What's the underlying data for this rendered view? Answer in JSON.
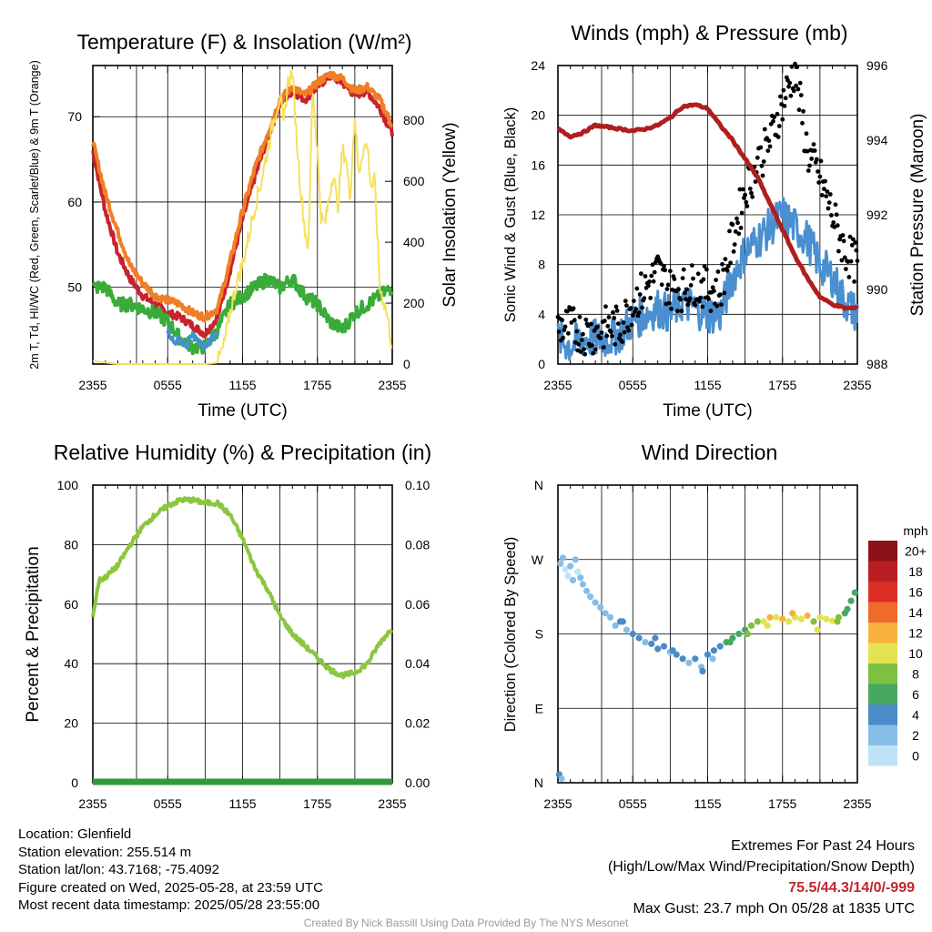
{
  "chart_data": [
    {
      "type": "line",
      "title": "Temperature (F) & Insolation (W/m²)",
      "xlabel": "Time (UTC)",
      "ylabel": "2m T, Td, HI/WC (Red, Green, Scarlet/Blue) & 9m T (Orange)",
      "ylabel_right": "Solar Insolation (Yellow)",
      "x_ticks": [
        "2355",
        "0555",
        "1155",
        "1755",
        "2355"
      ],
      "ylim": [
        41,
        76
      ],
      "y_ticks": [
        50,
        60,
        70
      ],
      "ylim_right": [
        0,
        980
      ],
      "y_ticks_right": [
        0,
        200,
        400,
        600,
        800
      ],
      "grid": true,
      "series": [
        {
          "name": "2m T",
          "color": "#c8232c",
          "axis": "left",
          "x": [
            0,
            1,
            2,
            3,
            4,
            5,
            6,
            7,
            8,
            9,
            10,
            11,
            12,
            13,
            14,
            15,
            16,
            17,
            18,
            19,
            20,
            21,
            22,
            23,
            24
          ],
          "y": [
            66,
            59,
            54,
            51,
            49,
            48,
            47,
            46.5,
            45.5,
            44.5,
            46.5,
            52,
            58,
            63,
            67.5,
            71.5,
            73,
            72,
            73.5,
            74.8,
            74,
            72.5,
            73,
            71,
            68
          ]
        },
        {
          "name": "9m T",
          "color": "#f07e26",
          "axis": "left",
          "x": [
            0,
            1,
            2,
            3,
            4,
            5,
            6,
            7,
            8,
            9,
            10,
            11,
            12,
            13,
            14,
            15,
            16,
            17,
            18,
            19,
            20,
            21,
            22,
            23,
            24
          ],
          "y": [
            67,
            61,
            56.5,
            52.5,
            50.5,
            49,
            48.5,
            48,
            47,
            46.5,
            47.5,
            53,
            59,
            64,
            68,
            72,
            73.5,
            72.5,
            74,
            75,
            74.5,
            73,
            73.5,
            72,
            69
          ]
        },
        {
          "name": "Td",
          "color": "#3aab3a",
          "axis": "left",
          "x": [
            0,
            1,
            2,
            3,
            4,
            5,
            6,
            7,
            8,
            9,
            10,
            11,
            12,
            13,
            14,
            15,
            16,
            17,
            18,
            19,
            20,
            21,
            22,
            23,
            24
          ],
          "y": [
            50,
            50,
            48,
            48,
            47.5,
            47,
            46,
            44,
            43,
            43,
            45,
            48,
            49,
            50,
            51,
            50,
            51,
            49,
            48,
            46,
            45,
            47,
            48,
            49,
            50
          ]
        },
        {
          "name": "HI/WC",
          "color": "#4591ce",
          "axis": "left",
          "x": [
            6,
            6.5,
            7,
            7.5,
            8,
            8.5,
            9,
            9.5,
            10
          ],
          "y": [
            45,
            43.5,
            44,
            43,
            44.5,
            43.5,
            43,
            44,
            45
          ]
        },
        {
          "name": "Solar Insolation",
          "color": "#f6e05e",
          "axis": "right",
          "x": [
            0,
            2,
            4,
            6,
            8,
            9,
            10,
            10.5,
            11,
            11.5,
            12,
            12.5,
            13,
            13.5,
            14,
            14.5,
            15,
            15.3,
            15.6,
            16,
            16.3,
            16.6,
            17,
            17.3,
            17.6,
            18,
            18.3,
            18.6,
            19,
            19.3,
            19.6,
            20,
            20.3,
            20.6,
            21,
            21.3,
            21.6,
            22,
            22.3,
            22.6,
            23,
            23.5,
            24
          ],
          "y": [
            10,
            0,
            0,
            0,
            0,
            0,
            5,
            60,
            170,
            260,
            330,
            420,
            520,
            600,
            700,
            800,
            880,
            780,
            920,
            960,
            760,
            600,
            440,
            380,
            920,
            700,
            480,
            460,
            560,
            640,
            500,
            700,
            680,
            540,
            820,
            620,
            700,
            720,
            580,
            600,
            250,
            180,
            60
          ]
        }
      ]
    },
    {
      "type": "line",
      "title": "Winds (mph) & Pressure (mb)",
      "xlabel": "Time (UTC)",
      "ylabel": "Sonic Wind & Gust (Blue, Black)",
      "ylabel_right": "Station Pressure (Maroon)",
      "x_ticks": [
        "2355",
        "0555",
        "1155",
        "1755",
        "2355"
      ],
      "ylim": [
        0,
        24
      ],
      "y_ticks": [
        0,
        4,
        8,
        12,
        16,
        20,
        24
      ],
      "ylim_right": [
        988,
        996
      ],
      "y_ticks_right": [
        988,
        990,
        992,
        994,
        996
      ],
      "grid": true,
      "series": [
        {
          "name": "Sonic Wind",
          "color": "#4a8fd0",
          "axis": "left",
          "x": [
            0,
            1,
            2,
            3,
            4,
            5,
            6,
            7,
            8,
            9,
            10,
            11,
            12,
            13,
            14,
            15,
            16,
            17,
            18,
            19,
            20,
            21,
            22,
            23,
            24
          ],
          "y": [
            2,
            1.5,
            2,
            2,
            2,
            2.5,
            3.5,
            4,
            4.5,
            4,
            5,
            4.5,
            4,
            4,
            7,
            9,
            10,
            11,
            12,
            11,
            10,
            8,
            7,
            5,
            4
          ]
        },
        {
          "name": "Gust",
          "color": "#000000",
          "axis": "left",
          "x": [
            0,
            1,
            2,
            3,
            4,
            5,
            6,
            7,
            8,
            9,
            10,
            11,
            12,
            13,
            14,
            15,
            16,
            17,
            18,
            19,
            20,
            21,
            22,
            23,
            24
          ],
          "y": [
            3,
            3,
            2.5,
            2.5,
            3,
            3,
            5,
            6,
            7.5,
            6,
            6,
            6.5,
            6,
            6,
            10,
            14,
            16,
            18,
            21,
            23.7,
            17,
            15,
            12,
            9,
            8
          ]
        },
        {
          "name": "Station Pressure",
          "color": "#b01e1e",
          "axis": "right",
          "x": [
            0,
            1,
            2,
            3,
            4,
            5,
            6,
            7,
            8,
            9,
            10,
            11,
            12,
            13,
            14,
            15,
            16,
            17,
            18,
            19,
            20,
            21,
            22,
            23,
            24
          ],
          "y": [
            994.3,
            994.1,
            994.2,
            994.4,
            994.35,
            994.3,
            994.25,
            994.3,
            994.4,
            994.6,
            994.9,
            994.95,
            994.85,
            994.4,
            994,
            993.5,
            993.0,
            992.3,
            991.6,
            990.9,
            990.3,
            989.8,
            989.6,
            989.5,
            989.5
          ]
        }
      ]
    },
    {
      "type": "line",
      "title": "Relative Humidity (%) & Precipitation (in)",
      "xlabel": "",
      "ylabel": "Percent & Precipitation",
      "x_ticks": [
        "2355",
        "0555",
        "1155",
        "1755",
        "2355"
      ],
      "ylim": [
        0,
        100
      ],
      "y_ticks": [
        0,
        20,
        40,
        60,
        80,
        100
      ],
      "ylim_right": [
        0,
        0.1
      ],
      "y_ticks_right": [
        "0.00",
        "0.02",
        "0.04",
        "0.06",
        "0.08",
        "0.10"
      ],
      "grid": true,
      "series": [
        {
          "name": "Relative Humidity",
          "color": "#8cc63f",
          "axis": "left",
          "x": [
            0,
            0.5,
            1,
            2,
            3,
            4,
            5,
            6,
            7,
            8,
            9,
            10,
            11,
            12,
            13,
            14,
            15,
            16,
            17,
            18,
            19,
            20,
            21,
            22,
            23,
            24
          ],
          "y": [
            56,
            68,
            69,
            73,
            80,
            86,
            90,
            93,
            95,
            95,
            94,
            94,
            90,
            82,
            72,
            65,
            56,
            50,
            46,
            42,
            38,
            36,
            37,
            40,
            47,
            52
          ]
        },
        {
          "name": "Precipitation",
          "color": "#2f9a3c",
          "axis": "right",
          "x": [
            0,
            24
          ],
          "y": [
            0,
            0
          ]
        }
      ]
    },
    {
      "type": "scatter",
      "title": "Wind Direction",
      "xlabel": "",
      "ylabel": "Direction (Colored By Speed)",
      "x_ticks": [
        "2355",
        "0555",
        "1155",
        "1755",
        "2355"
      ],
      "y_ticks": [
        "N",
        "E",
        "S",
        "W",
        "N"
      ],
      "ylim": [
        0,
        360
      ],
      "grid": true,
      "colorbar": {
        "label": "mph",
        "levels": [
          "0",
          "2",
          "4",
          "6",
          "8",
          "10",
          "12",
          "14",
          "16",
          "18",
          "20+"
        ],
        "colors": [
          "#bfe3f6",
          "#86bde6",
          "#4a8bc9",
          "#47a861",
          "#7cc142",
          "#e3e251",
          "#f6b13e",
          "#f06a2a",
          "#dc2f27",
          "#b81e23",
          "#8c1217"
        ]
      },
      "points_x": [
        0.2,
        0.4,
        0.6,
        0.8,
        1.0,
        1.2,
        1.4,
        1.6,
        1.8,
        2.0,
        2.3,
        2.6,
        3.0,
        3.4,
        3.8,
        4.2,
        4.6,
        5.0,
        5.5,
        6.0,
        6.5,
        7.0,
        7.5,
        8.0,
        8.5,
        9.0,
        9.5,
        10.0,
        10.5,
        11.0,
        11.5,
        12.0,
        12.5,
        13.0,
        13.5,
        14.0,
        14.5,
        15.0,
        15.5,
        16.0,
        16.5,
        17.0,
        17.5,
        18.0,
        18.5,
        19.0,
        19.5,
        20.0,
        20.5,
        21.0,
        21.5,
        22.0,
        22.5,
        23.0,
        23.5,
        23.8,
        0.1,
        0.3,
        5.2,
        7.8,
        9.2,
        11.6,
        12.4,
        13.8,
        15.2,
        16.8,
        18.8,
        20.8,
        22.4,
        23.2
      ],
      "points_y": [
        265,
        272,
        258,
        250,
        262,
        245,
        270,
        255,
        248,
        240,
        232,
        225,
        218,
        212,
        205,
        200,
        190,
        195,
        185,
        180,
        175,
        170,
        168,
        162,
        165,
        158,
        155,
        150,
        145,
        150,
        140,
        155,
        160,
        165,
        170,
        175,
        180,
        185,
        190,
        195,
        195,
        200,
        200,
        198,
        195,
        200,
        198,
        202,
        195,
        200,
        198,
        196,
        200,
        205,
        220,
        230,
        10,
        5,
        195,
        175,
        160,
        135,
        150,
        170,
        180,
        190,
        205,
        185,
        195,
        210
      ],
      "points_speed": [
        2,
        2,
        1,
        1,
        2,
        2,
        3,
        1,
        2,
        2,
        3,
        2,
        2,
        3,
        2,
        3,
        2,
        4,
        3,
        4,
        4,
        3,
        4,
        5,
        4,
        3,
        4,
        4,
        3,
        4,
        3,
        4,
        5,
        5,
        6,
        7,
        6,
        7,
        8,
        9,
        10,
        12,
        11,
        12,
        10,
        11,
        10,
        12,
        9,
        10,
        11,
        10,
        8,
        7,
        7,
        6,
        4,
        3,
        4,
        4,
        5,
        4,
        3,
        6,
        8,
        10,
        12,
        11,
        9,
        7
      ]
    }
  ],
  "footer": {
    "location": "Location: Glenfield",
    "elevation": "Station elevation: 255.514 m",
    "latlon": "Station lat/lon: 43.7168; -75.4092",
    "created": "Figure created on Wed, 2025-05-28, at 23:59 UTC",
    "recent": "Most recent data timestamp: 2025/05/28 23:55:00",
    "extremes_title": "Extremes For Past 24 Hours",
    "extremes_sub": "(High/Low/Max Wind/Precipitation/Snow Depth)",
    "extremes_values": "75.5/44.3/14/0/-999",
    "max_gust": "Max Gust: 23.7 mph On 05/28 at 1835 UTC",
    "credit": "Created By Nick Bassill Using Data Provided By The NYS Mesonet"
  }
}
